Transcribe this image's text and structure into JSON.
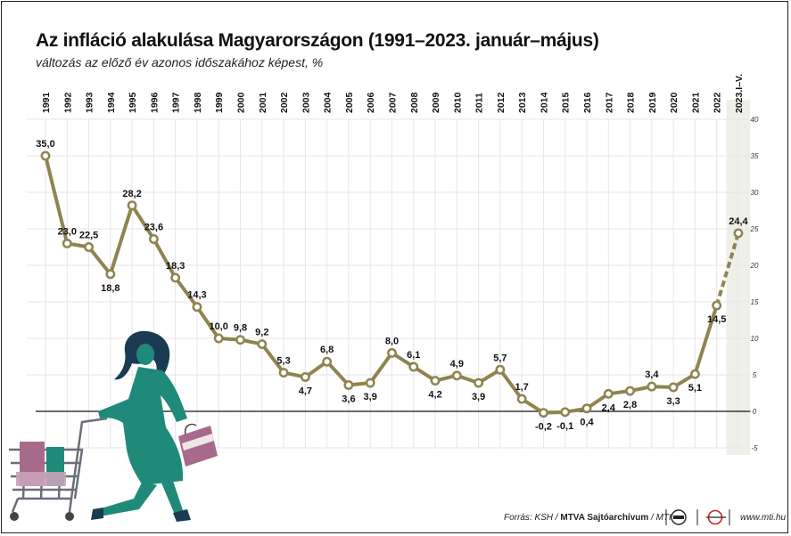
{
  "header": {
    "title": "Az infláció alakulása Magyarországon (1991–2023. január–május)",
    "subtitle": "változás az előző év azonos időszakához képest, %"
  },
  "footer": {
    "source_prefix": "Forrás: KSH / ",
    "source_mtva": "MTVA Sajtóarchívum",
    "source_suffix": " / MTI",
    "url": "www.mti.hu",
    "logo1_icon": "mtva-logo-icon",
    "logo2_icon": "mti-logo-icon"
  },
  "colors": {
    "line": "#8f8450",
    "marker_fill": "#ffffff",
    "grid": "#e6e6e6",
    "zero_line": "#111111",
    "last_column_band": "#efefea",
    "figure_teal": "#1f8a7a",
    "figure_hair": "#1b3b52",
    "bag": "#a86a8c"
  },
  "decoration": {
    "illustration": "woman-with-shopping-cart-illustration"
  },
  "chart_data": {
    "type": "line",
    "categories": [
      "1991",
      "1992",
      "1993",
      "1994",
      "1995",
      "1996",
      "1997",
      "1998",
      "1999",
      "2000",
      "2001",
      "2002",
      "2003",
      "2004",
      "2005",
      "2006",
      "2007",
      "2008",
      "2009",
      "2010",
      "2011",
      "2012",
      "2013",
      "2014",
      "2015",
      "2016",
      "2017",
      "2018",
      "2019",
      "2020",
      "2021",
      "2022",
      "2023.I–V."
    ],
    "values": [
      35.0,
      23.0,
      22.5,
      18.8,
      28.2,
      23.6,
      18.3,
      14.3,
      10.0,
      9.8,
      9.2,
      5.3,
      4.7,
      6.8,
      3.6,
      3.9,
      8.0,
      6.1,
      4.2,
      4.9,
      3.9,
      5.7,
      1.7,
      -0.2,
      -0.1,
      0.4,
      2.4,
      2.8,
      3.4,
      3.3,
      5.1,
      14.5,
      24.4
    ],
    "data_labels": [
      "35,0",
      "23,0",
      "22,5",
      "18,8",
      "28,2",
      "23,6",
      "18,3",
      "14,3",
      "10,0",
      "9,8",
      "9,2",
      "5,3",
      "4,7",
      "6,8",
      "3,6",
      "3,9",
      "8,0",
      "6,1",
      "4,2",
      "4,9",
      "3,9",
      "5,7",
      "1,7",
      "-0,2",
      "-0,1",
      "0,4",
      "2,4",
      "2,8",
      "3,4",
      "3,3",
      "5,1",
      "14,5",
      "24,4"
    ],
    "y_ticks": [
      "40",
      "35",
      "30",
      "25",
      "20",
      "15",
      "10",
      "5",
      "0",
      "-5"
    ],
    "y_tick_values": [
      40,
      35,
      30,
      25,
      20,
      15,
      10,
      5,
      0,
      -5
    ],
    "ylim": [
      -5,
      40
    ],
    "grid": true,
    "last_segment_dashed": true,
    "xlabel": "",
    "ylabel": ""
  }
}
